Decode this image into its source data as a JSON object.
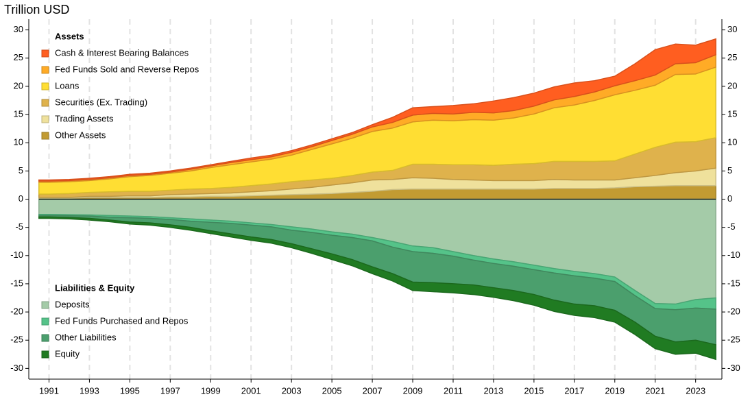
{
  "chart_data": {
    "type": "area",
    "title": "Trillion USD",
    "x": [
      1990.5,
      1991,
      1992,
      1993,
      1994,
      1995,
      1996,
      1997,
      1998,
      1999,
      2000,
      2001,
      2002,
      2003,
      2004,
      2005,
      2006,
      2007,
      2008,
      2009,
      2010,
      2011,
      2012,
      2013,
      2014,
      2015,
      2016,
      2017,
      2018,
      2019,
      2020,
      2021,
      2022,
      2023,
      2024
    ],
    "xlim": [
      1990,
      2024.3
    ],
    "xticks": [
      1991,
      1993,
      1995,
      1997,
      1999,
      2001,
      2003,
      2005,
      2007,
      2009,
      2011,
      2013,
      2015,
      2017,
      2019,
      2021,
      2023
    ],
    "ylim": [
      -31.9,
      31.9
    ],
    "yticks": [
      -30,
      -25,
      -20,
      -15,
      -10,
      -5,
      0,
      5,
      10,
      15,
      20,
      25,
      30
    ],
    "grid": true,
    "groups": [
      {
        "name": "Assets",
        "series": [
          {
            "name": "Cash & Interest Bearing Balances",
            "color": "#ff5e20",
            "values": [
              0.2,
              0.2,
              0.2,
              0.2,
              0.2,
              0.2,
              0.2,
              0.2,
              0.2,
              0.2,
              0.2,
              0.3,
              0.3,
              0.3,
              0.3,
              0.3,
              0.3,
              0.4,
              0.9,
              1.3,
              1.2,
              1.5,
              1.5,
              2.1,
              2.3,
              2.3,
              2.3,
              2.4,
              2.0,
              1.7,
              3.0,
              4.5,
              3.5,
              3.1,
              2.8
            ]
          },
          {
            "name": "Fed Funds Sold and Reverse Repos",
            "color": "#ffab26",
            "values": [
              0.2,
              0.2,
              0.2,
              0.2,
              0.2,
              0.2,
              0.2,
              0.2,
              0.3,
              0.3,
              0.4,
              0.4,
              0.4,
              0.5,
              0.5,
              0.6,
              0.7,
              0.8,
              1.0,
              1.2,
              1.2,
              1.2,
              1.3,
              1.3,
              1.3,
              1.4,
              1.4,
              1.5,
              1.5,
              1.6,
              1.7,
              1.8,
              1.9,
              2.0,
              2.2
            ]
          },
          {
            "name": "Loans",
            "color": "#ffde33",
            "values": [
              2.1,
              2.1,
              2.1,
              2.1,
              2.3,
              2.6,
              2.8,
              3.0,
              3.2,
              3.7,
              4.0,
              4.2,
              4.4,
              4.7,
              5.4,
              6.1,
              6.6,
              7.2,
              7.5,
              7.5,
              7.8,
              7.8,
              8.0,
              8.0,
              8.2,
              8.8,
              9.5,
              10.0,
              10.8,
              11.7,
              11.3,
              11.0,
              12.0,
              12.0,
              12.5
            ]
          },
          {
            "name": "Securities (Ex. Trading)",
            "color": "#dfb24c",
            "values": [
              0.6,
              0.6,
              0.7,
              0.7,
              0.8,
              0.8,
              0.8,
              0.8,
              0.9,
              0.9,
              1.0,
              1.1,
              1.2,
              1.3,
              1.3,
              1.2,
              1.3,
              1.4,
              1.6,
              2.4,
              2.5,
              2.6,
              2.7,
              2.7,
              2.9,
              3.0,
              3.2,
              3.3,
              3.3,
              3.4,
              4.2,
              5.0,
              5.4,
              5.2,
              5.4
            ]
          },
          {
            "name": "Trading Assets",
            "color": "#efe19c",
            "values": [
              0.1,
              0.1,
              0.1,
              0.2,
              0.2,
              0.3,
              0.3,
              0.4,
              0.5,
              0.5,
              0.6,
              0.7,
              0.8,
              1.0,
              1.2,
              1.5,
              1.7,
              2.0,
              1.8,
              2.0,
              1.9,
              1.7,
              1.6,
              1.5,
              1.5,
              1.5,
              1.6,
              1.5,
              1.5,
              1.4,
              1.6,
              1.9,
              2.3,
              2.6,
              3.1
            ]
          },
          {
            "name": "Other Assets",
            "color": "#c29b32",
            "values": [
              0.2,
              0.2,
              0.2,
              0.3,
              0.3,
              0.3,
              0.3,
              0.4,
              0.4,
              0.5,
              0.5,
              0.6,
              0.7,
              0.8,
              0.9,
              1.0,
              1.2,
              1.4,
              1.7,
              1.8,
              1.8,
              1.8,
              1.8,
              1.8,
              1.8,
              1.8,
              1.9,
              1.9,
              1.9,
              2.0,
              2.2,
              2.3,
              2.4,
              2.4,
              2.4
            ]
          }
        ]
      },
      {
        "name": "Liabilities & Equity",
        "series": [
          {
            "name": "Deposits",
            "color": "#a4cba8",
            "values": [
              -2.7,
              -2.7,
              -2.75,
              -2.8,
              -2.9,
              -3.0,
              -3.1,
              -3.3,
              -3.5,
              -3.7,
              -3.9,
              -4.2,
              -4.5,
              -4.9,
              -5.3,
              -5.8,
              -6.2,
              -6.8,
              -7.5,
              -8.3,
              -8.6,
              -9.3,
              -10.0,
              -10.6,
              -11.1,
              -11.7,
              -12.3,
              -12.8,
              -13.2,
              -13.8,
              -16.2,
              -18.5,
              -18.6,
              -17.8,
              -17.5
            ]
          },
          {
            "name": "Fed Funds Purchased and Repos",
            "color": "#55c389",
            "values": [
              -0.2,
              -0.2,
              -0.2,
              -0.2,
              -0.3,
              -0.3,
              -0.3,
              -0.3,
              -0.4,
              -0.4,
              -0.4,
              -0.4,
              -0.4,
              -0.6,
              -0.6,
              -0.6,
              -0.6,
              -0.6,
              -1.0,
              -1.0,
              -1.0,
              -0.8,
              -0.8,
              -0.8,
              -0.8,
              -0.8,
              -0.8,
              -0.8,
              -0.8,
              -0.8,
              -0.9,
              -0.9,
              -1.0,
              -1.5,
              -2.0
            ]
          },
          {
            "name": "Other Liabilities",
            "color": "#4b9f6d",
            "values": [
              -0.25,
              -0.25,
              -0.3,
              -0.4,
              -0.5,
              -0.75,
              -0.8,
              -0.95,
              -1.1,
              -1.5,
              -1.85,
              -2.1,
              -2.25,
              -2.4,
              -2.9,
              -3.3,
              -3.9,
              -4.6,
              -4.7,
              -5.4,
              -5.2,
              -4.9,
              -4.4,
              -4.3,
              -4.3,
              -4.4,
              -4.8,
              -5.0,
              -4.9,
              -5.1,
              -4.7,
              -4.9,
              -5.7,
              -5.7,
              -6.3
            ]
          },
          {
            "name": "Equity",
            "color": "#207b22",
            "values": [
              -0.25,
              -0.25,
              -0.25,
              -0.3,
              -0.3,
              -0.35,
              -0.4,
              -0.45,
              -0.5,
              -0.5,
              -0.55,
              -0.6,
              -0.65,
              -0.7,
              -0.8,
              -1.0,
              -1.1,
              -1.2,
              -1.3,
              -1.5,
              -1.6,
              -1.6,
              -1.7,
              -1.7,
              -1.8,
              -1.9,
              -2.0,
              -2.0,
              -2.1,
              -2.1,
              -2.2,
              -2.2,
              -2.2,
              -2.3,
              -2.6
            ]
          }
        ]
      }
    ]
  }
}
